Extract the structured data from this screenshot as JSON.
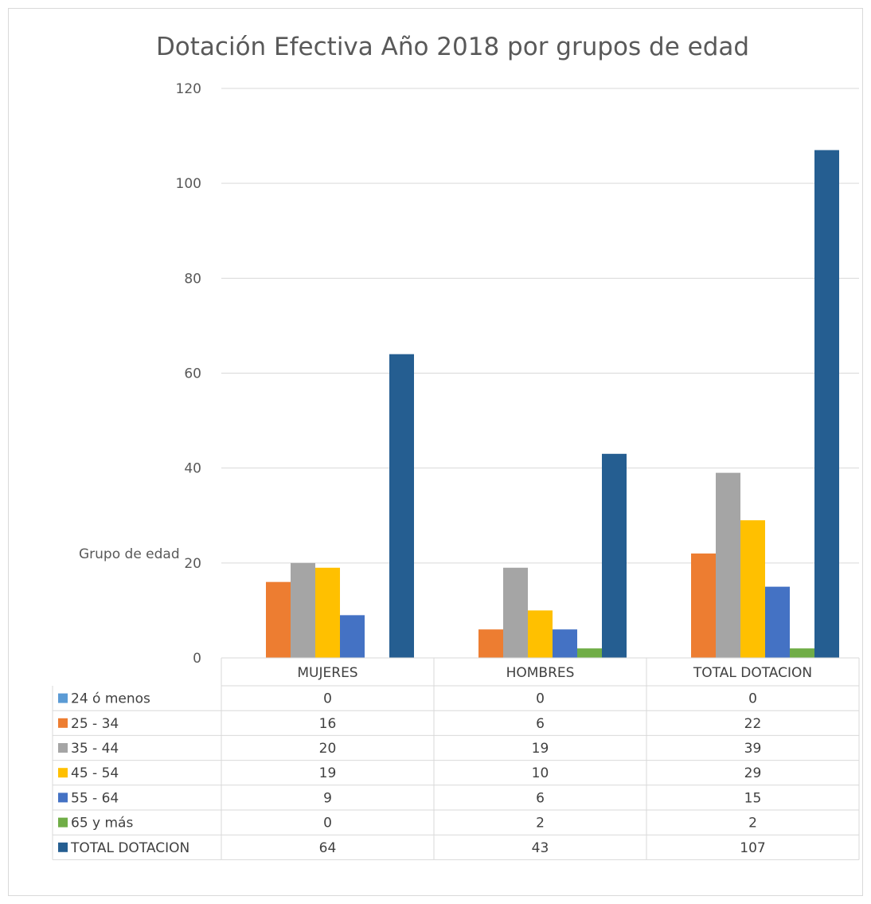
{
  "chart_data": {
    "type": "bar",
    "title": "Dotación Efectiva Año 2018 por grupos de edad",
    "xlabel": "",
    "ylabel": "Grupo de edad",
    "categories": [
      "MUJERES",
      "HOMBRES",
      "TOTAL DOTACION"
    ],
    "ylim": [
      0,
      120
    ],
    "yticks": [
      0,
      20,
      40,
      60,
      80,
      100,
      120
    ],
    "grid": true,
    "legend": "data-table",
    "series": [
      {
        "name": "24 ó menos",
        "color": "#5b9bd5",
        "values": [
          0,
          0,
          0
        ]
      },
      {
        "name": "25 - 34",
        "color": "#ed7d31",
        "values": [
          16,
          6,
          22
        ]
      },
      {
        "name": "35 - 44",
        "color": "#a5a5a5",
        "values": [
          20,
          19,
          39
        ]
      },
      {
        "name": "45 - 54",
        "color": "#ffc000",
        "values": [
          19,
          10,
          29
        ]
      },
      {
        "name": "55 - 64",
        "color": "#4472c4",
        "values": [
          9,
          6,
          15
        ]
      },
      {
        "name": "65 y más",
        "color": "#70ad47",
        "values": [
          0,
          2,
          2
        ]
      },
      {
        "name": "TOTAL DOTACION",
        "color": "#255e91",
        "values": [
          64,
          43,
          107
        ]
      }
    ]
  }
}
